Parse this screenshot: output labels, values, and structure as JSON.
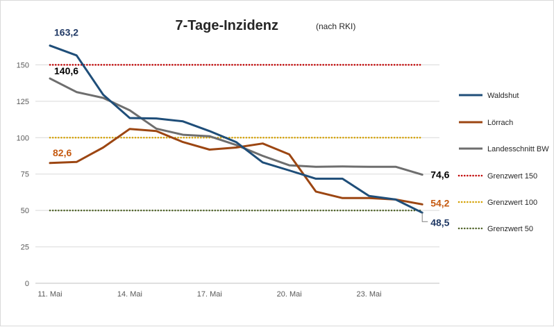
{
  "chart_data": {
    "type": "line",
    "title": "7-Tage-Inzidenz",
    "subtitle": "(nach RKI)",
    "x": [
      "11. Mai",
      "12. Mai",
      "13. Mai",
      "14. Mai",
      "15. Mai",
      "16. Mai",
      "17. Mai",
      "18. Mai",
      "19. Mai",
      "20. Mai",
      "21. Mai",
      "22. Mai",
      "23. Mai",
      "24. Mai",
      "25. Mai"
    ],
    "x_tick_labels": [
      "11. Mai",
      "14. Mai",
      "17. Mai",
      "20. Mai",
      "23. Mai"
    ],
    "x_tick_positions": [
      0,
      3,
      6,
      9,
      12
    ],
    "ylim": [
      0,
      175
    ],
    "y_ticks": [
      0,
      25,
      50,
      75,
      100,
      125,
      150
    ],
    "grid": true,
    "legend_position": "right",
    "series": [
      {
        "name": "Waldshut",
        "color": "#1f4e79",
        "style": "solid",
        "values": [
          163.2,
          156.5,
          129.5,
          113.5,
          113.2,
          111.2,
          104.5,
          97.0,
          83.0,
          77.5,
          71.8,
          71.8,
          60.0,
          57.5,
          48.5
        ]
      },
      {
        "name": "Lörrach",
        "color": "#9c4612",
        "style": "solid",
        "values": [
          82.6,
          83.3,
          93.2,
          106.0,
          104.5,
          97.0,
          91.8,
          93.2,
          96.0,
          88.5,
          63.0,
          58.5,
          58.5,
          57.5,
          54.2
        ]
      },
      {
        "name": "Landesschnitt BW",
        "color": "#6e6e6e",
        "style": "solid",
        "values": [
          140.6,
          131.3,
          127.3,
          118.8,
          106.2,
          102.0,
          101.0,
          95.0,
          87.5,
          81.0,
          80.0,
          80.2,
          80.0,
          80.0,
          74.6
        ]
      },
      {
        "name": "Grenzwert 150",
        "color": "#c00000",
        "style": "dotted",
        "values": [
          150,
          150,
          150,
          150,
          150,
          150,
          150,
          150,
          150,
          150,
          150,
          150,
          150,
          150,
          150
        ]
      },
      {
        "name": "Grenzwert 100",
        "color": "#d4a000",
        "style": "dotted",
        "values": [
          100,
          100,
          100,
          100,
          100,
          100,
          100,
          100,
          100,
          100,
          100,
          100,
          100,
          100,
          100
        ]
      },
      {
        "name": "Grenzwert 50",
        "color": "#4f6228",
        "style": "dotted",
        "values": [
          50,
          50,
          50,
          50,
          50,
          50,
          50,
          50,
          50,
          50,
          50,
          50,
          50,
          50,
          50
        ]
      }
    ],
    "annotations": [
      {
        "series": "Waldshut",
        "index": 0,
        "text": "163,2",
        "color": "#1f3864"
      },
      {
        "series": "Landesschnitt BW",
        "index": 0,
        "text": "140,6",
        "color": "#000000"
      },
      {
        "series": "Lörrach",
        "index": 0,
        "text": "82,6",
        "color": "#c55a11"
      },
      {
        "series": "Landesschnitt BW",
        "index": 14,
        "text": "74,6",
        "color": "#000000"
      },
      {
        "series": "Lörrach",
        "index": 14,
        "text": "54,2",
        "color": "#c55a11"
      },
      {
        "series": "Waldshut",
        "index": 14,
        "text": "48,5",
        "color": "#1f3864"
      }
    ]
  }
}
